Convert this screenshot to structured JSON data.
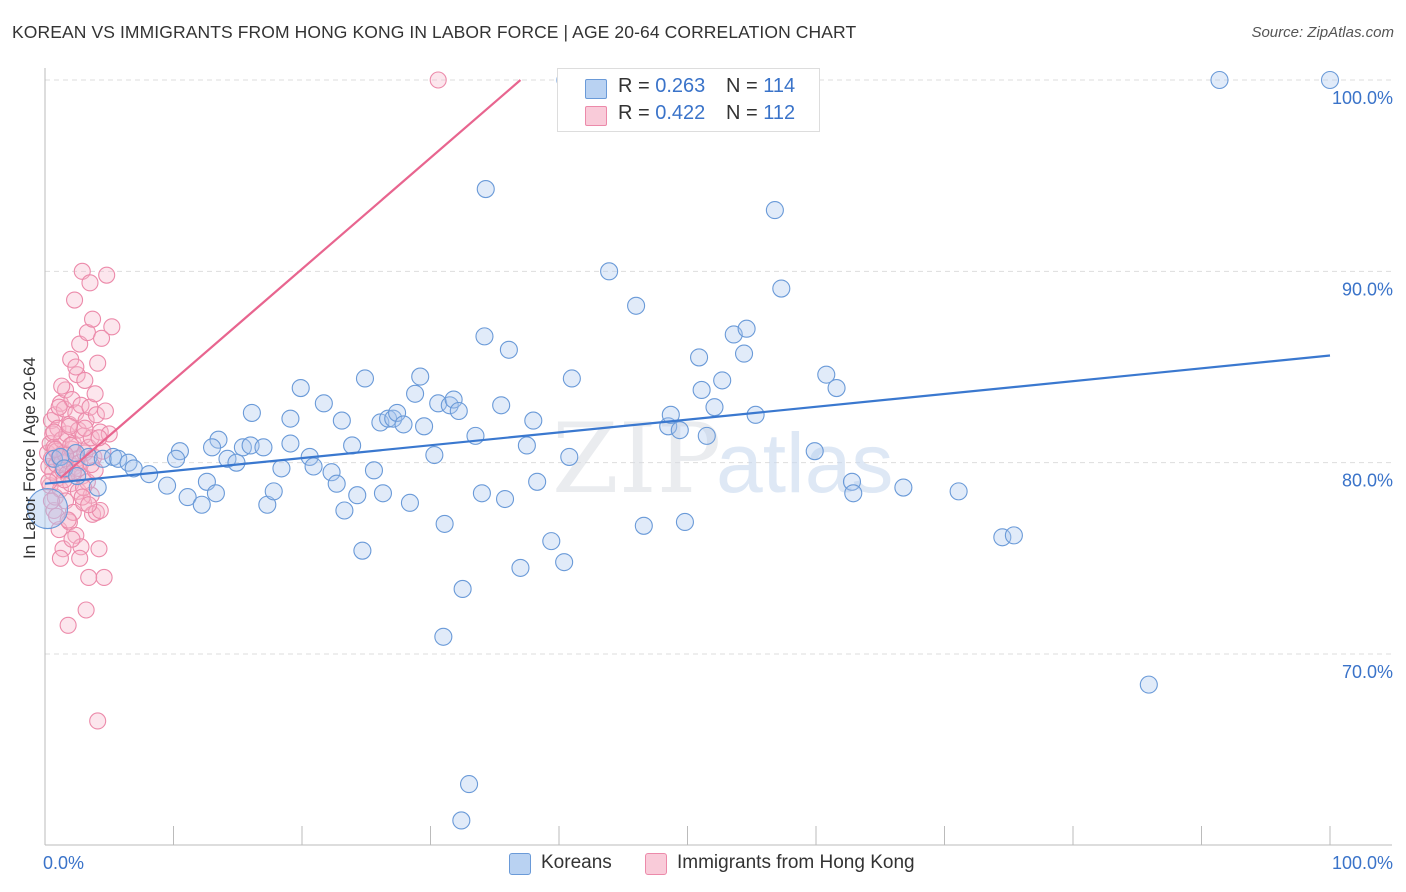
{
  "title": "KOREAN VS IMMIGRANTS FROM HONG KONG IN LABOR FORCE | AGE 20-64 CORRELATION CHART",
  "source": "Source: ZipAtlas.com",
  "watermark": {
    "zip": "ZIP",
    "atlas": "atlas"
  },
  "legend": {
    "rows": [
      {
        "r_label": "R =",
        "r_value": "0.263",
        "n_label": "N =",
        "n_value": "114"
      },
      {
        "r_label": "R =",
        "r_value": "0.422",
        "n_label": "N =",
        "n_value": "112"
      }
    ]
  },
  "colors": {
    "koreans_fill": "#a9c7ef",
    "koreans_stroke": "#6a9ad8",
    "koreans_line": "#3a78cf",
    "hk_fill": "#f6b8cb",
    "hk_stroke": "#ec8aaa",
    "hk_line": "#e8658f",
    "axis_text": "#3a73c9",
    "grid": "#dddddd"
  },
  "chart_data": {
    "type": "scatter",
    "title": "KOREAN VS IMMIGRANTS FROM HONG KONG IN LABOR FORCE | AGE 20-64 CORRELATION CHART",
    "xlabel": "",
    "ylabel": "In Labor Force | Age 20-64",
    "xlim": [
      0,
      100
    ],
    "ylim": [
      60,
      100
    ],
    "x_tick_labels": [
      "0.0%",
      "100.0%"
    ],
    "y_ticks": [
      70,
      80,
      90,
      100
    ],
    "y_tick_labels": [
      "70.0%",
      "80.0%",
      "90.0%",
      "100.0%"
    ],
    "grid": true,
    "legend_position": "top-center",
    "series": [
      {
        "name": "Koreans",
        "r": 0.263,
        "n": 114,
        "trend": {
          "x": [
            0,
            100
          ],
          "y": [
            78.9,
            85.6
          ]
        },
        "points": [
          [
            0.2,
            77.6
          ],
          [
            0.7,
            80.2
          ],
          [
            1.2,
            80.3
          ],
          [
            1.5,
            79.7
          ],
          [
            2.4,
            80.5
          ],
          [
            2.5,
            79.3
          ],
          [
            3.4,
            80.3
          ],
          [
            4.1,
            78.7
          ],
          [
            4.5,
            80.2
          ],
          [
            5.3,
            80.3
          ],
          [
            5.7,
            80.2
          ],
          [
            6.5,
            80.0
          ],
          [
            6.9,
            79.7
          ],
          [
            8.1,
            79.4
          ],
          [
            9.5,
            78.8
          ],
          [
            10.5,
            80.6
          ],
          [
            10.2,
            80.2
          ],
          [
            11.1,
            78.2
          ],
          [
            12.2,
            77.8
          ],
          [
            12.6,
            79.0
          ],
          [
            13.3,
            78.4
          ],
          [
            13.5,
            81.2
          ],
          [
            13.0,
            80.8
          ],
          [
            14.2,
            80.2
          ],
          [
            14.9,
            80.0
          ],
          [
            15.4,
            80.8
          ],
          [
            16.1,
            82.6
          ],
          [
            16.0,
            80.9
          ],
          [
            17.0,
            80.8
          ],
          [
            17.3,
            77.8
          ],
          [
            17.8,
            78.5
          ],
          [
            18.4,
            79.7
          ],
          [
            19.1,
            82.3
          ],
          [
            19.1,
            81.0
          ],
          [
            19.9,
            83.9
          ],
          [
            20.6,
            80.3
          ],
          [
            20.9,
            79.8
          ],
          [
            21.7,
            83.1
          ],
          [
            22.3,
            79.5
          ],
          [
            22.7,
            78.9
          ],
          [
            23.1,
            82.2
          ],
          [
            23.3,
            77.5
          ],
          [
            23.9,
            80.9
          ],
          [
            24.3,
            78.3
          ],
          [
            24.7,
            75.4
          ],
          [
            24.9,
            84.4
          ],
          [
            25.6,
            79.6
          ],
          [
            26.1,
            82.1
          ],
          [
            26.3,
            78.4
          ],
          [
            26.7,
            82.3
          ],
          [
            27.1,
            82.3
          ],
          [
            27.4,
            82.6
          ],
          [
            27.9,
            82.0
          ],
          [
            28.4,
            77.9
          ],
          [
            28.8,
            83.6
          ],
          [
            29.2,
            84.5
          ],
          [
            29.5,
            81.9
          ],
          [
            30.3,
            80.4
          ],
          [
            30.6,
            83.1
          ],
          [
            31.0,
            70.9
          ],
          [
            31.1,
            76.8
          ],
          [
            31.5,
            83.0
          ],
          [
            31.8,
            83.3
          ],
          [
            32.2,
            82.7
          ],
          [
            32.5,
            73.4
          ],
          [
            32.4,
            61.3
          ],
          [
            33.0,
            63.2
          ],
          [
            33.5,
            81.4
          ],
          [
            34.0,
            78.4
          ],
          [
            34.2,
            86.6
          ],
          [
            34.3,
            94.3
          ],
          [
            35.5,
            83.0
          ],
          [
            35.8,
            78.1
          ],
          [
            36.1,
            85.9
          ],
          [
            37.0,
            74.5
          ],
          [
            37.5,
            80.9
          ],
          [
            38.0,
            82.2
          ],
          [
            38.3,
            79.0
          ],
          [
            39.4,
            75.9
          ],
          [
            40.4,
            74.8
          ],
          [
            40.8,
            80.3
          ],
          [
            41.0,
            84.4
          ],
          [
            40.5,
            100.0
          ],
          [
            43.9,
            90.0
          ],
          [
            46.0,
            88.2
          ],
          [
            46.6,
            76.7
          ],
          [
            48.5,
            81.9
          ],
          [
            48.7,
            82.5
          ],
          [
            49.4,
            81.7
          ],
          [
            49.8,
            76.9
          ],
          [
            50.9,
            85.5
          ],
          [
            51.1,
            83.8
          ],
          [
            51.5,
            81.4
          ],
          [
            52.1,
            82.9
          ],
          [
            52.7,
            84.3
          ],
          [
            53.6,
            86.7
          ],
          [
            54.4,
            85.7
          ],
          [
            54.6,
            87.0
          ],
          [
            55.3,
            82.5
          ],
          [
            56.8,
            93.2
          ],
          [
            57.3,
            89.1
          ],
          [
            59.9,
            80.6
          ],
          [
            60.8,
            84.6
          ],
          [
            61.6,
            83.9
          ],
          [
            62.8,
            79.0
          ],
          [
            62.9,
            78.4
          ],
          [
            66.8,
            78.7
          ],
          [
            71.1,
            78.5
          ],
          [
            74.5,
            76.1
          ],
          [
            75.4,
            76.2
          ],
          [
            85.9,
            68.4
          ],
          [
            91.4,
            100.0
          ],
          [
            100.0,
            100.0
          ]
        ]
      },
      {
        "name": "Immigrants from Hong Kong",
        "r": 0.422,
        "n": 112,
        "trend": {
          "x": [
            1.2,
            37.0
          ],
          "y": [
            79.2,
            100.0
          ]
        },
        "points": [
          [
            30.6,
            100.0
          ],
          [
            0.2,
            80.5
          ],
          [
            0.3,
            79.8
          ],
          [
            0.4,
            81.0
          ],
          [
            0.4,
            78.8
          ],
          [
            0.5,
            80.2
          ],
          [
            0.5,
            82.2
          ],
          [
            0.6,
            79.5
          ],
          [
            0.6,
            81.5
          ],
          [
            0.7,
            77.5
          ],
          [
            0.7,
            80.8
          ],
          [
            0.8,
            78.2
          ],
          [
            0.8,
            82.5
          ],
          [
            0.9,
            79.9
          ],
          [
            0.9,
            80.6
          ],
          [
            1.0,
            79.2
          ],
          [
            1.0,
            81.8
          ],
          [
            1.1,
            76.5
          ],
          [
            1.1,
            80.3
          ],
          [
            1.2,
            83.1
          ],
          [
            1.2,
            78.6
          ],
          [
            1.3,
            80.0
          ],
          [
            1.3,
            81.2
          ],
          [
            1.4,
            79.6
          ],
          [
            1.4,
            75.5
          ],
          [
            1.5,
            82.8
          ],
          [
            1.5,
            80.5
          ],
          [
            1.6,
            78.0
          ],
          [
            1.6,
            83.8
          ],
          [
            1.7,
            79.4
          ],
          [
            1.7,
            81.5
          ],
          [
            1.8,
            80.1
          ],
          [
            1.8,
            71.5
          ],
          [
            1.9,
            76.9
          ],
          [
            1.9,
            82.0
          ],
          [
            2.0,
            78.9
          ],
          [
            2.0,
            85.4
          ],
          [
            2.1,
            80.7
          ],
          [
            2.1,
            83.3
          ],
          [
            2.2,
            77.4
          ],
          [
            2.2,
            81.0
          ],
          [
            2.3,
            79.8
          ],
          [
            2.3,
            88.5
          ],
          [
            2.4,
            76.2
          ],
          [
            2.4,
            82.6
          ],
          [
            2.5,
            80.2
          ],
          [
            2.5,
            84.6
          ],
          [
            2.6,
            78.5
          ],
          [
            2.6,
            81.7
          ],
          [
            2.7,
            80.0
          ],
          [
            2.7,
            86.2
          ],
          [
            2.8,
            75.6
          ],
          [
            2.8,
            83.0
          ],
          [
            2.9,
            79.3
          ],
          [
            2.9,
            90.0
          ],
          [
            3.0,
            81.4
          ],
          [
            3.0,
            77.9
          ],
          [
            3.1,
            84.3
          ],
          [
            3.1,
            80.5
          ],
          [
            3.2,
            72.3
          ],
          [
            3.2,
            82.2
          ],
          [
            3.3,
            79.0
          ],
          [
            3.3,
            86.8
          ],
          [
            3.4,
            80.8
          ],
          [
            3.4,
            74.0
          ],
          [
            3.5,
            82.9
          ],
          [
            3.5,
            89.4
          ],
          [
            3.6,
            78.3
          ],
          [
            3.6,
            81.3
          ],
          [
            3.7,
            77.3
          ],
          [
            3.7,
            87.5
          ],
          [
            3.8,
            80.3
          ],
          [
            3.9,
            83.6
          ],
          [
            3.9,
            79.6
          ],
          [
            4.0,
            77.4
          ],
          [
            4.0,
            82.5
          ],
          [
            4.1,
            85.2
          ],
          [
            4.1,
            66.5
          ],
          [
            4.2,
            75.5
          ],
          [
            4.3,
            81.6
          ],
          [
            4.3,
            77.5
          ],
          [
            4.4,
            86.5
          ],
          [
            4.5,
            80.6
          ],
          [
            4.6,
            74.0
          ],
          [
            4.7,
            82.7
          ],
          [
            4.8,
            89.8
          ],
          [
            5.0,
            81.5
          ],
          [
            5.2,
            87.1
          ],
          [
            0.5,
            78.0
          ],
          [
            0.9,
            77.2
          ],
          [
            1.5,
            79.1
          ],
          [
            2.0,
            80.9
          ],
          [
            2.6,
            79.7
          ],
          [
            3.0,
            78.7
          ],
          [
            1.2,
            75.0
          ],
          [
            0.7,
            81.6
          ],
          [
            1.8,
            77.0
          ],
          [
            2.4,
            85.0
          ],
          [
            3.1,
            81.8
          ],
          [
            1.1,
            82.9
          ],
          [
            2.1,
            76.0
          ],
          [
            0.3,
            79.0
          ],
          [
            1.6,
            80.4
          ],
          [
            2.9,
            78.2
          ],
          [
            3.6,
            79.9
          ],
          [
            1.3,
            84.0
          ],
          [
            2.7,
            75.0
          ],
          [
            0.8,
            80.7
          ],
          [
            2.2,
            79.5
          ],
          [
            1.9,
            81.9
          ],
          [
            3.4,
            77.8
          ],
          [
            4.2,
            81.3
          ]
        ]
      }
    ]
  },
  "bottom_legend": [
    {
      "label": "Koreans"
    },
    {
      "label": "Immigrants from Hong Kong"
    }
  ]
}
